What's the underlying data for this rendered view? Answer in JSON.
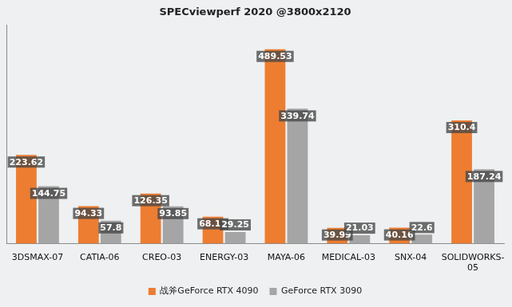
{
  "chart_data": {
    "type": "bar",
    "title": "SPECviewperf 2020 @3800x2120",
    "categories": [
      "3DSMAX-07",
      "CATIA-06",
      "CREO-03",
      "ENERGY-03",
      "MAYA-06",
      "MEDICAL-03",
      "SNX-04",
      "SOLIDWORKS-05"
    ],
    "series": [
      {
        "name": "战斧GeForce RTX 4090",
        "color": "#ED7D31",
        "values": [
          223.62,
          94.33,
          126.35,
          68.11,
          489.53,
          39.99,
          40.16,
          310.4
        ]
      },
      {
        "name": "GeForce RTX 3090",
        "color": "#A5A5A5",
        "values": [
          144.75,
          57.8,
          93.85,
          29.25,
          339.74,
          21.03,
          22.6,
          187.24
        ]
      }
    ],
    "ylim": [
      0,
      550
    ],
    "grid": false,
    "legend": "bottom",
    "data_labels": true,
    "tick_labels": "x"
  }
}
